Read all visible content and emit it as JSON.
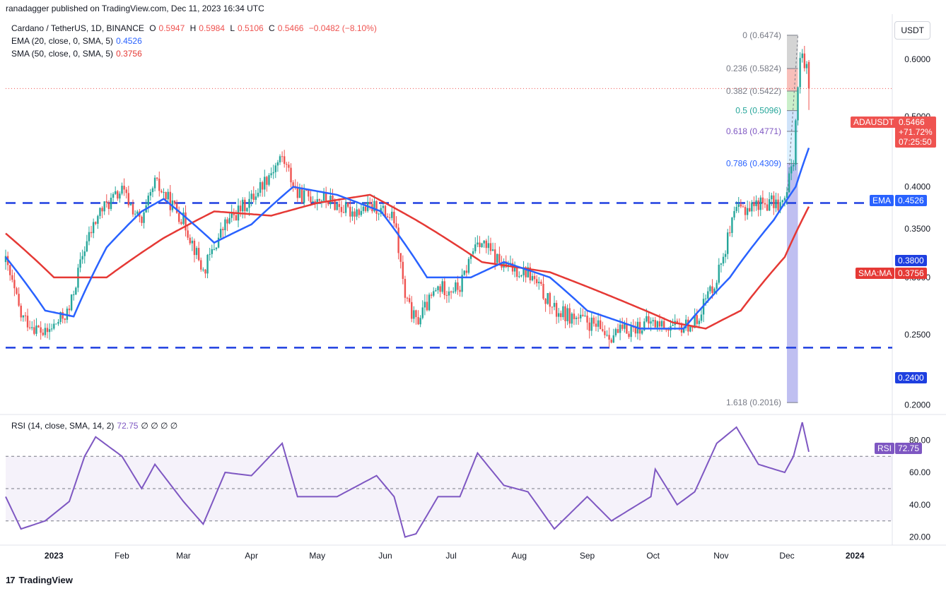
{
  "header": {
    "publisher": "ranadagger published on TradingView.com, Dec 11, 2023 16:34 UTC"
  },
  "legend": {
    "title": "Cardano / TetherUS, 1D, BINANCE",
    "open_label": "O",
    "open": "0.5947",
    "high_label": "H",
    "high": "0.5984",
    "low_label": "L",
    "low": "0.5106",
    "close_label": "C",
    "close": "0.5466",
    "change": "−0.0482 (−8.10%)",
    "ema_label": "EMA (20, close, 0, SMA, 5)",
    "ema_value": "0.4526",
    "sma_label": "SMA (50, close, 0, SMA, 5)",
    "sma_value": "0.3756",
    "rsi_label": "RSI (14, close, SMA, 14, 2)",
    "rsi_value": "72.75",
    "rsi_extra": "∅ ∅ ∅ ∅"
  },
  "currency_button": "USDT",
  "price_tags": {
    "adausdt_label": "ADAUSDT",
    "adausdt_value": "0.5466",
    "adausdt_change": "+71.72%",
    "adausdt_timer": "07:25:50",
    "ema_label": "EMA",
    "ema_value": "0.4526",
    "level_high": "0.3800",
    "smama_label": "SMA:MA",
    "smama_value": "0.3756",
    "level_low": "0.2400",
    "rsi_label": "RSI",
    "rsi_value": "72.75"
  },
  "fib_labels": [
    "0 (0.6474)",
    "0.236 (0.5824)",
    "0.382 (0.5422)",
    "0.5 (0.5096)",
    "0.618 (0.4771)",
    "0.786 (0.4309)",
    "1.618 (0.2016)"
  ],
  "footer": {
    "logo": "17",
    "brand": "TradingView"
  },
  "colors": {
    "up": "#26a69a",
    "down": "#ef5350",
    "ema": "#2962ff",
    "sma": "#e53935",
    "level": "#1e3fe0",
    "rsi": "#7e57c2"
  },
  "chart_data": {
    "type": "candlestick",
    "title": "Cardano / TetherUS, 1D, BINANCE",
    "x_ticks": [
      "2023",
      "Feb",
      "Mar",
      "Apr",
      "May",
      "Jun",
      "Jul",
      "Aug",
      "Sep",
      "Oct",
      "Nov",
      "Dec",
      "2024"
    ],
    "price_axis": {
      "ticks": [
        "0.6000",
        "0.5000",
        "0.4000",
        "0.3500",
        "0.3000",
        "0.2500",
        "0.2000"
      ],
      "scale": "log",
      "range": [
        0.195,
        0.68
      ]
    },
    "rsi_axis": {
      "ticks": [
        "80.00",
        "60.00",
        "40.00",
        "20.00"
      ],
      "range": [
        15,
        95
      ],
      "upper_band": 70,
      "lower_band": 30,
      "midline": 50
    },
    "horizontal_levels": [
      0.38,
      0.24
    ],
    "fibonacci": [
      [
        0,
        0.6474
      ],
      [
        0.236,
        0.5824
      ],
      [
        0.382,
        0.5422
      ],
      [
        0.5,
        0.5096
      ],
      [
        0.618,
        0.4771
      ],
      [
        0.786,
        0.4309
      ],
      [
        1.618,
        0.2016
      ]
    ],
    "close_path": [
      [
        "2022-12-10",
        0.315
      ],
      [
        "2022-12-17",
        0.265
      ],
      [
        "2022-12-28",
        0.25
      ],
      [
        "2023-01-08",
        0.27
      ],
      [
        "2023-01-15",
        0.33
      ],
      [
        "2023-01-22",
        0.37
      ],
      [
        "2023-02-01",
        0.395
      ],
      [
        "2023-02-10",
        0.355
      ],
      [
        "2023-02-16",
        0.405
      ],
      [
        "2023-03-01",
        0.36
      ],
      [
        "2023-03-10",
        0.305
      ],
      [
        "2023-03-20",
        0.355
      ],
      [
        "2023-04-01",
        0.385
      ],
      [
        "2023-04-15",
        0.44
      ],
      [
        "2023-04-22",
        0.39
      ],
      [
        "2023-05-05",
        0.385
      ],
      [
        "2023-05-15",
        0.37
      ],
      [
        "2023-05-28",
        0.375
      ],
      [
        "2023-06-05",
        0.36
      ],
      [
        "2023-06-10",
        0.28
      ],
      [
        "2023-06-15",
        0.26
      ],
      [
        "2023-06-25",
        0.29
      ],
      [
        "2023-07-05",
        0.29
      ],
      [
        "2023-07-13",
        0.34
      ],
      [
        "2023-07-25",
        0.31
      ],
      [
        "2023-08-05",
        0.305
      ],
      [
        "2023-08-17",
        0.27
      ],
      [
        "2023-09-01",
        0.26
      ],
      [
        "2023-09-12",
        0.25
      ],
      [
        "2023-09-30",
        0.26
      ],
      [
        "2023-10-12",
        0.255
      ],
      [
        "2023-10-20",
        0.26
      ],
      [
        "2023-10-30",
        0.3
      ],
      [
        "2023-11-08",
        0.37
      ],
      [
        "2023-11-18",
        0.38
      ],
      [
        "2023-11-30",
        0.38
      ],
      [
        "2023-12-04",
        0.44
      ],
      [
        "2023-12-07",
        0.6
      ],
      [
        "2023-12-10",
        0.5947
      ],
      [
        "2023-12-11",
        0.5466
      ]
    ],
    "ema20": [
      [
        "2022-12-10",
        0.32
      ],
      [
        "2022-12-28",
        0.27
      ],
      [
        "2023-01-10",
        0.265
      ],
      [
        "2023-01-25",
        0.33
      ],
      [
        "2023-02-10",
        0.37
      ],
      [
        "2023-02-20",
        0.385
      ],
      [
        "2023-03-15",
        0.335
      ],
      [
        "2023-04-01",
        0.355
      ],
      [
        "2023-04-20",
        0.4
      ],
      [
        "2023-05-10",
        0.39
      ],
      [
        "2023-05-30",
        0.37
      ],
      [
        "2023-06-20",
        0.3
      ],
      [
        "2023-07-10",
        0.3
      ],
      [
        "2023-07-25",
        0.315
      ],
      [
        "2023-08-15",
        0.3
      ],
      [
        "2023-09-01",
        0.27
      ],
      [
        "2023-09-25",
        0.255
      ],
      [
        "2023-10-15",
        0.255
      ],
      [
        "2023-11-05",
        0.3
      ],
      [
        "2023-11-25",
        0.36
      ],
      [
        "2023-12-05",
        0.4
      ],
      [
        "2023-12-11",
        0.4526
      ]
    ],
    "sma50": [
      [
        "2022-12-10",
        0.345
      ],
      [
        "2023-01-01",
        0.3
      ],
      [
        "2023-01-25",
        0.3
      ],
      [
        "2023-02-20",
        0.34
      ],
      [
        "2023-03-15",
        0.37
      ],
      [
        "2023-04-10",
        0.365
      ],
      [
        "2023-05-01",
        0.38
      ],
      [
        "2023-05-25",
        0.39
      ],
      [
        "2023-06-15",
        0.36
      ],
      [
        "2023-07-15",
        0.315
      ],
      [
        "2023-08-15",
        0.305
      ],
      [
        "2023-09-15",
        0.28
      ],
      [
        "2023-10-10",
        0.26
      ],
      [
        "2023-10-25",
        0.255
      ],
      [
        "2023-11-10",
        0.27
      ],
      [
        "2023-11-30",
        0.32
      ],
      [
        "2023-12-11",
        0.3756
      ]
    ],
    "rsi": [
      [
        "2022-12-10",
        45
      ],
      [
        "2022-12-17",
        25
      ],
      [
        "2022-12-28",
        30
      ],
      [
        "2023-01-08",
        42
      ],
      [
        "2023-01-15",
        70
      ],
      [
        "2023-01-20",
        82
      ],
      [
        "2023-02-01",
        70
      ],
      [
        "2023-02-10",
        50
      ],
      [
        "2023-02-16",
        65
      ],
      [
        "2023-03-01",
        42
      ],
      [
        "2023-03-10",
        28
      ],
      [
        "2023-03-20",
        60
      ],
      [
        "2023-04-01",
        58
      ],
      [
        "2023-04-15",
        78
      ],
      [
        "2023-04-22",
        45
      ],
      [
        "2023-05-10",
        45
      ],
      [
        "2023-05-28",
        58
      ],
      [
        "2023-06-05",
        45
      ],
      [
        "2023-06-10",
        20
      ],
      [
        "2023-06-15",
        22
      ],
      [
        "2023-06-25",
        45
      ],
      [
        "2023-07-05",
        45
      ],
      [
        "2023-07-13",
        72
      ],
      [
        "2023-07-25",
        52
      ],
      [
        "2023-08-05",
        48
      ],
      [
        "2023-08-17",
        25
      ],
      [
        "2023-09-01",
        45
      ],
      [
        "2023-09-12",
        30
      ],
      [
        "2023-09-30",
        45
      ],
      [
        "2023-10-02",
        62
      ],
      [
        "2023-10-12",
        40
      ],
      [
        "2023-10-20",
        48
      ],
      [
        "2023-10-30",
        78
      ],
      [
        "2023-11-08",
        88
      ],
      [
        "2023-11-18",
        65
      ],
      [
        "2023-11-30",
        60
      ],
      [
        "2023-12-04",
        70
      ],
      [
        "2023-12-08",
        91
      ],
      [
        "2023-12-11",
        72.75
      ]
    ],
    "last": {
      "open": 0.5947,
      "high": 0.5984,
      "low": 0.5106,
      "close": 0.5466
    }
  }
}
